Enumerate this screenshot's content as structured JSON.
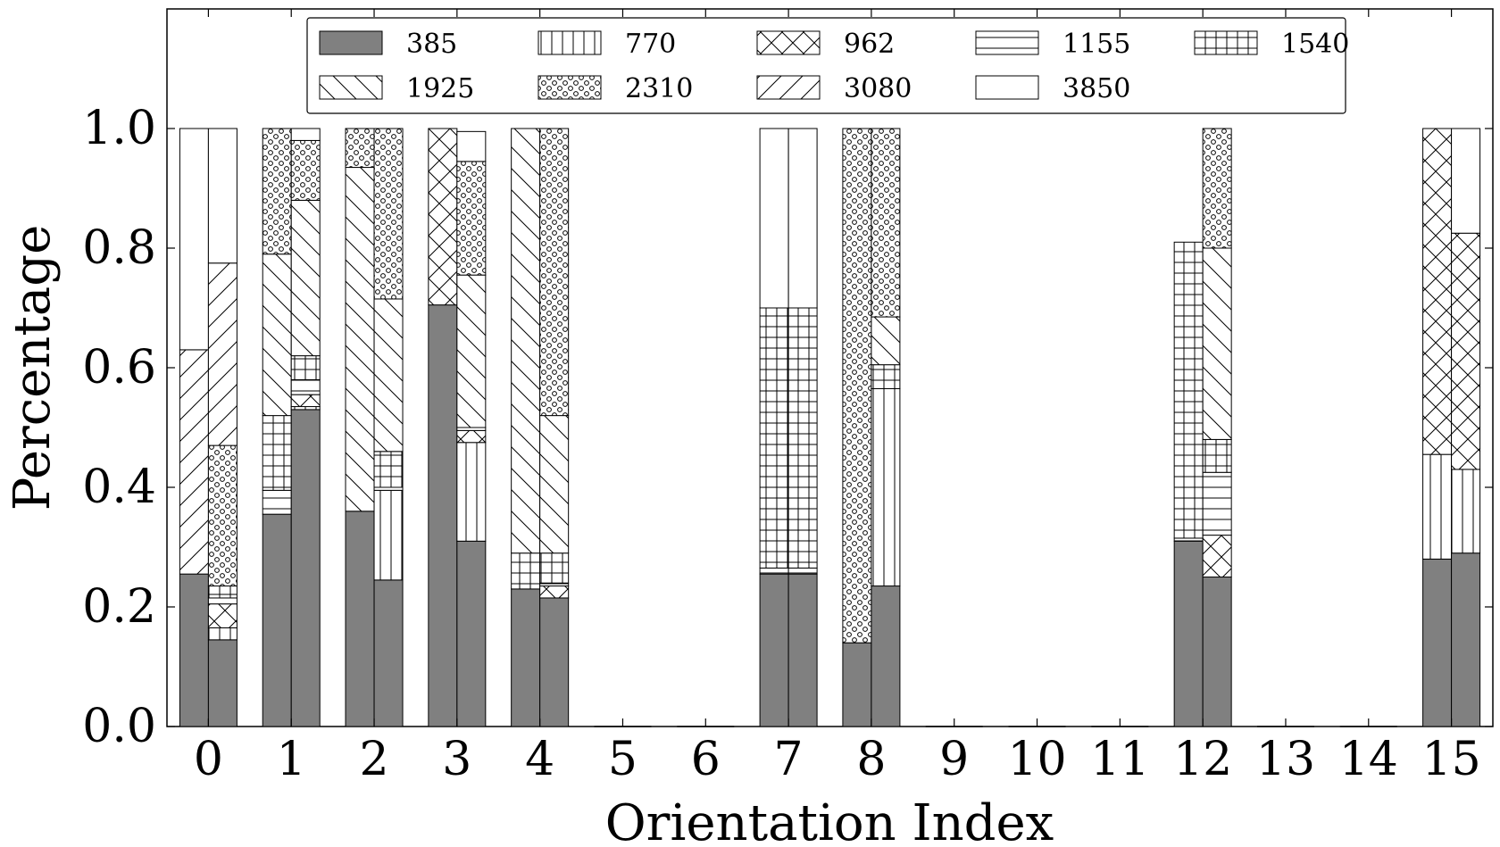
{
  "chart_data": {
    "type": "bar",
    "stacked": true,
    "grouped": true,
    "bars_per_category": 2,
    "xlabel": "Orientation Index",
    "ylabel": "Percentage",
    "ylim": [
      0,
      1.2
    ],
    "yticks": [
      "0.0",
      "0.2",
      "0.4",
      "0.6",
      "0.8",
      "1.0"
    ],
    "categories": [
      "0",
      "1",
      "2",
      "3",
      "4",
      "5",
      "6",
      "7",
      "8",
      "9",
      "10",
      "11",
      "12",
      "13",
      "14",
      "15"
    ],
    "legend_position": "top-center",
    "series": [
      {
        "name": "385",
        "pattern": "solid",
        "color": "#808080"
      },
      {
        "name": "770",
        "pattern": "vertical",
        "color": "#ffffff"
      },
      {
        "name": "962",
        "pattern": "crosshatch",
        "color": "#ffffff"
      },
      {
        "name": "1155",
        "pattern": "horizontal",
        "color": "#ffffff"
      },
      {
        "name": "1540",
        "pattern": "grid",
        "color": "#ffffff"
      },
      {
        "name": "1925",
        "pattern": "backslash",
        "color": "#ffffff"
      },
      {
        "name": "2310",
        "pattern": "circles",
        "color": "#ffffff"
      },
      {
        "name": "3080",
        "pattern": "slash",
        "color": "#ffffff"
      },
      {
        "name": "3850",
        "pattern": "empty",
        "color": "#ffffff"
      }
    ],
    "bars": [
      [
        [
          0.255,
          0,
          0,
          0,
          0,
          0,
          0,
          0.375,
          0.37
        ],
        [
          0.145,
          0.02,
          0.04,
          0.01,
          0.02,
          0,
          0.235,
          0.305,
          0.225
        ]
      ],
      [
        [
          0.355,
          0,
          0,
          0.04,
          0.125,
          0.27,
          0.21,
          0,
          0
        ],
        [
          0.53,
          0.005,
          0.02,
          0.025,
          0.04,
          0.26,
          0.1,
          0,
          0.02
        ]
      ],
      [
        [
          0.36,
          0,
          0,
          0,
          0,
          0.575,
          0.065,
          0,
          0
        ],
        [
          0.245,
          0.15,
          0,
          0.005,
          0.06,
          0.255,
          0.285,
          0,
          0
        ]
      ],
      [
        [
          0.705,
          0,
          0.295,
          0,
          0,
          0,
          0,
          0,
          0
        ],
        [
          0.31,
          0.165,
          0.02,
          0.005,
          0,
          0.255,
          0.19,
          0,
          0.05
        ]
      ],
      [
        [
          0.23,
          0,
          0,
          0,
          0.06,
          0.71,
          0,
          0,
          0
        ],
        [
          0.215,
          0,
          0.02,
          0.005,
          0.05,
          0.23,
          0.48,
          0,
          0
        ]
      ],
      [
        [
          0,
          0,
          0,
          0,
          0,
          0,
          0,
          0,
          0
        ],
        [
          0,
          0,
          0,
          0,
          0,
          0,
          0,
          0,
          0
        ]
      ],
      [
        [
          0,
          0,
          0,
          0,
          0,
          0,
          0,
          0,
          0
        ],
        [
          0,
          0,
          0,
          0,
          0,
          0,
          0,
          0,
          0
        ]
      ],
      [
        [
          0.255,
          0,
          0,
          0.01,
          0.435,
          0,
          0,
          0,
          0.3
        ],
        [
          0.255,
          0,
          0,
          0.01,
          0.435,
          0,
          0,
          0,
          0.3
        ]
      ],
      [
        [
          0.14,
          0,
          0,
          0,
          0,
          0,
          0.86,
          0,
          0
        ],
        [
          0.235,
          0.33,
          0,
          0,
          0.04,
          0.08,
          0.315,
          0,
          0
        ]
      ],
      [
        [
          0,
          0,
          0,
          0,
          0,
          0,
          0,
          0,
          0
        ],
        [
          0,
          0,
          0,
          0,
          0,
          0,
          0,
          0,
          0
        ]
      ],
      [
        [
          0,
          0,
          0,
          0,
          0,
          0,
          0,
          0,
          0
        ],
        [
          0,
          0,
          0,
          0,
          0,
          0,
          0,
          0,
          0
        ]
      ],
      [
        [
          0,
          0,
          0,
          0,
          0,
          0,
          0,
          0,
          0
        ],
        [
          0,
          0,
          0,
          0,
          0,
          0,
          0,
          0,
          0
        ]
      ],
      [
        [
          0.31,
          0,
          0,
          0.005,
          0.495,
          0,
          0,
          0,
          0
        ],
        [
          0.25,
          0,
          0.07,
          0.105,
          0.055,
          0.32,
          0.2,
          0,
          0
        ]
      ],
      [
        [
          0,
          0,
          0,
          0,
          0,
          0,
          0,
          0,
          0
        ],
        [
          0,
          0,
          0,
          0,
          0,
          0,
          0,
          0,
          0
        ]
      ],
      [
        [
          0,
          0,
          0,
          0,
          0,
          0,
          0,
          0,
          0
        ],
        [
          0,
          0,
          0,
          0,
          0,
          0,
          0,
          0,
          0
        ]
      ],
      [
        [
          0.28,
          0.175,
          0.545,
          0,
          0,
          0,
          0,
          0,
          0
        ],
        [
          0.29,
          0.14,
          0.395,
          0,
          0,
          0,
          0,
          0,
          0.175
        ]
      ]
    ]
  }
}
